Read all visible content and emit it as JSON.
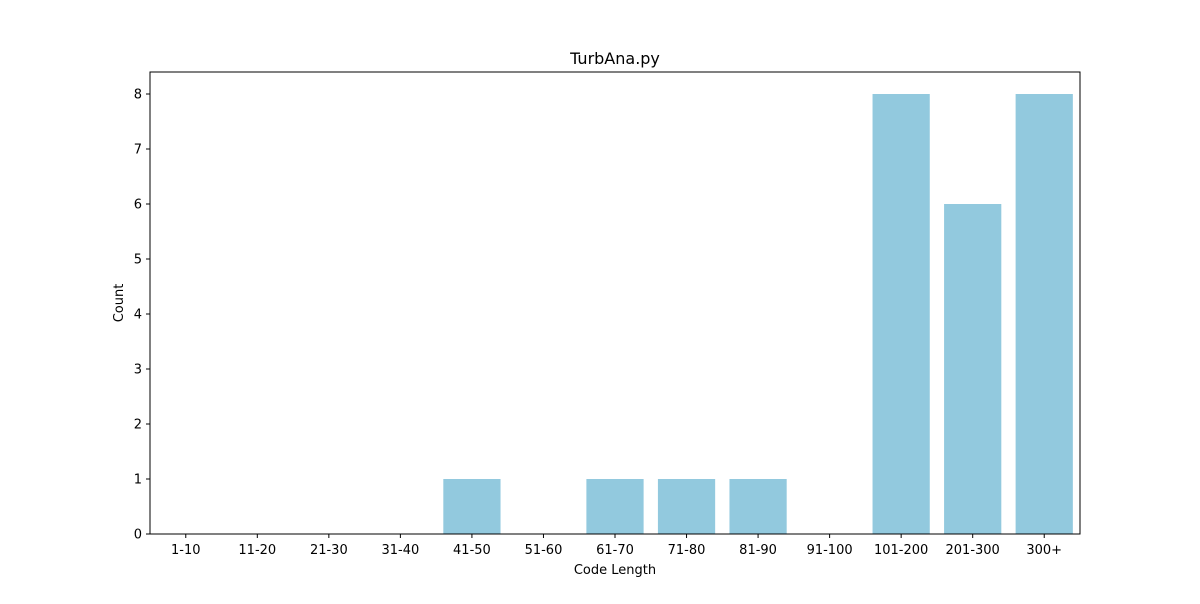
{
  "chart_data": {
    "type": "bar",
    "title": "TurbAna.py",
    "xlabel": "Code Length",
    "ylabel": "Count",
    "categories": [
      "1-10",
      "11-20",
      "21-30",
      "31-40",
      "41-50",
      "51-60",
      "61-70",
      "71-80",
      "81-90",
      "91-100",
      "101-200",
      "201-300",
      "300+"
    ],
    "values": [
      0,
      0,
      0,
      0,
      1,
      0,
      1,
      1,
      1,
      0,
      8,
      6,
      8
    ],
    "ylim": [
      0,
      8.4
    ],
    "yticks": [
      0,
      1,
      2,
      3,
      4,
      5,
      6,
      7,
      8
    ],
    "grid": false,
    "legend": "none",
    "bar_color": "#92c9de"
  }
}
